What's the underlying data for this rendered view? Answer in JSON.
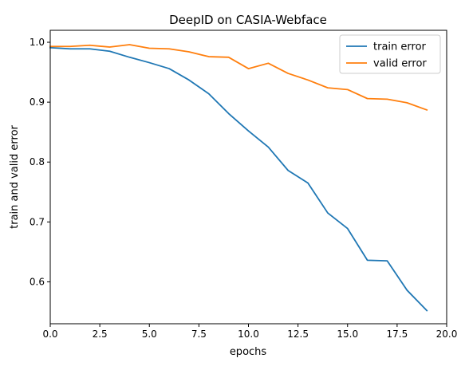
{
  "chart_data": {
    "type": "line",
    "title": "DeepID on CASIA-Webface",
    "xlabel": "epochs",
    "ylabel": "train and valid error",
    "xlim": [
      0,
      20
    ],
    "ylim": [
      0.53,
      1.02
    ],
    "xticks": [
      0,
      2.5,
      5,
      7.5,
      10,
      12.5,
      15,
      17.5,
      20
    ],
    "xtick_labels": [
      "0.0",
      "2.5",
      "5.0",
      "7.5",
      "10.0",
      "12.5",
      "15.0",
      "17.5",
      "20.0"
    ],
    "yticks": [
      0.6,
      0.7,
      0.8,
      0.9,
      1.0
    ],
    "ytick_labels": [
      "0.6",
      "0.7",
      "0.8",
      "0.9",
      "1.0"
    ],
    "grid": false,
    "legend_position": "top-right",
    "x": [
      0,
      1,
      2,
      3,
      4,
      5,
      6,
      7,
      8,
      9,
      10,
      11,
      12,
      13,
      14,
      15,
      16,
      17,
      18,
      19
    ],
    "series": [
      {
        "name": "train error",
        "color": "#1f77b4",
        "values": [
          0.991,
          0.989,
          0.989,
          0.985,
          0.975,
          0.966,
          0.956,
          0.937,
          0.914,
          0.881,
          0.852,
          0.825,
          0.786,
          0.765,
          0.715,
          0.689,
          0.636,
          0.635,
          0.586,
          0.552
        ]
      },
      {
        "name": "valid error",
        "color": "#ff7f0e",
        "values": [
          0.993,
          0.993,
          0.995,
          0.992,
          0.996,
          0.99,
          0.989,
          0.984,
          0.976,
          0.975,
          0.956,
          0.965,
          0.948,
          0.937,
          0.924,
          0.921,
          0.906,
          0.905,
          0.899,
          0.887
        ]
      }
    ]
  }
}
